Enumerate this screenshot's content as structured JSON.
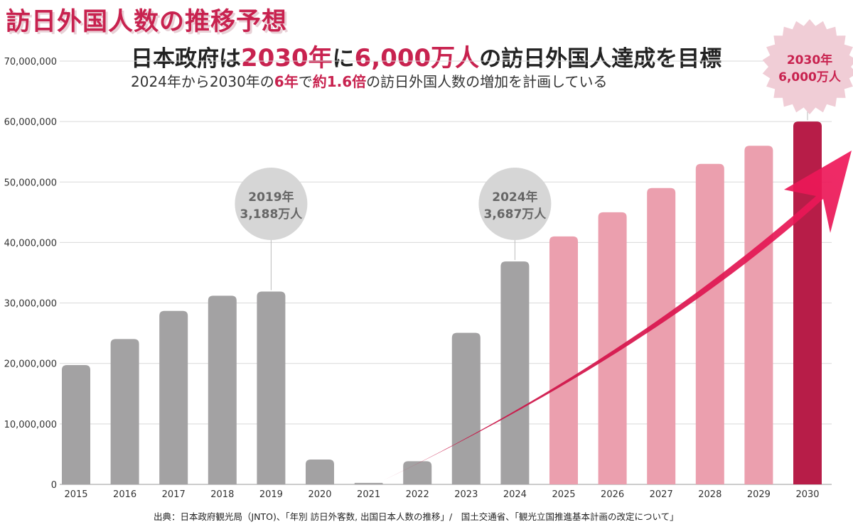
{
  "title": "訪日外国人数の推移予想",
  "headline": {
    "pre": "日本政府は",
    "year": "2030年",
    "mid": "に",
    "amount": "6,000万人",
    "post": "の訪日外国人達成を目標"
  },
  "subline": {
    "pre": "2024年から2030年の",
    "years": "6年",
    "mid": "で",
    "ratio": "約1.6倍",
    "post": "の訪日外国人数の増加を計画している"
  },
  "source": "出典：日本政府観光局（JNTO)、「年別 訪日外客数, 出国日本人数の推移」/　国土交通省、「観光立国推進基本計画の改定について」",
  "colors": {
    "title": "#c8224f",
    "actual": "#a3a2a3",
    "forecast": "#eb9fae",
    "target": "#b71d48",
    "arrow": "#f0185a",
    "bubble": "#d6d6d6",
    "star": "#f0cdd6"
  },
  "chart_data": {
    "type": "bar",
    "categories": [
      "2015",
      "2016",
      "2017",
      "2018",
      "2019",
      "2020",
      "2021",
      "2022",
      "2023",
      "2024",
      "2025",
      "2026",
      "2027",
      "2028",
      "2029",
      "2030"
    ],
    "values": [
      19737409,
      24039700,
      28691073,
      31191856,
      31882049,
      4115828,
      245862,
      3832110,
      25066350,
      36870148,
      41000000,
      45000000,
      49000000,
      53000000,
      56000000,
      60000000
    ],
    "bar_kind": [
      "actual",
      "actual",
      "actual",
      "actual",
      "actual",
      "actual",
      "actual",
      "actual",
      "actual",
      "actual",
      "forecast",
      "forecast",
      "forecast",
      "forecast",
      "forecast",
      "target"
    ],
    "ylim": [
      0,
      70000000
    ],
    "yticks": [
      0,
      10000000,
      20000000,
      30000000,
      40000000,
      50000000,
      60000000,
      70000000
    ],
    "ytick_labels": [
      "0",
      "10,000,000",
      "20,000,000",
      "30,000,000",
      "40,000,000",
      "50,000,000",
      "60,000,000",
      "70,000,000"
    ],
    "grid": true,
    "annotations": [
      {
        "category": "2019",
        "line1": "2019年",
        "line2": "3,188万人",
        "style": "circle"
      },
      {
        "category": "2024",
        "line1": "2024年",
        "line2": "3,687万人",
        "style": "circle"
      },
      {
        "category": "2030",
        "line1": "2030年",
        "line2": "6,000万人",
        "style": "star"
      }
    ]
  }
}
